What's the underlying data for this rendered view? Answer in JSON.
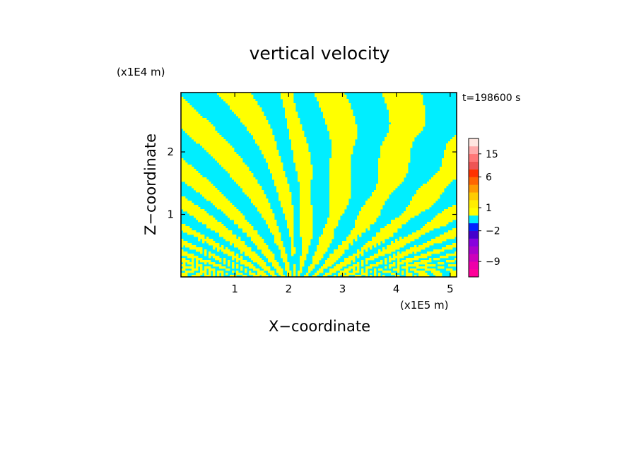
{
  "chart_data": {
    "type": "heatmap",
    "title": "vertical velocity",
    "xlabel": "X−coordinate",
    "ylabel": "Z−coordinate",
    "x_unit": "(x1E5 m)",
    "y_unit": "(x1E4 m)",
    "time_label": "t=198600 s",
    "xlim": [
      0,
      5.12
    ],
    "ylim": [
      0,
      2.95
    ],
    "x_ticks": [
      1,
      2,
      3,
      4,
      5
    ],
    "y_ticks": [
      1,
      2
    ],
    "x_tick_labels": [
      "1",
      "2",
      "3",
      "4",
      "5"
    ],
    "y_tick_labels": [
      "1",
      "2"
    ],
    "dominant_colors": {
      "positive": "#ffff00",
      "negative": "#00eeff"
    },
    "colorbar": {
      "tick_labels": [
        "15",
        "6",
        "1",
        "−2",
        "−9"
      ],
      "ticks": [
        15,
        6,
        1,
        -2,
        -9
      ],
      "levels": [
        -13,
        -11,
        -9,
        -7,
        -5,
        -3,
        -2,
        -1,
        0,
        1,
        2,
        3,
        4,
        6,
        8,
        11,
        15,
        19,
        23
      ],
      "colors": [
        "#ff0099",
        "#ee00aa",
        "#cc00bb",
        "#aa00cc",
        "#8800dd",
        "#4400cc",
        "#0022ff",
        "#00eeff",
        "#ffff00",
        "#ffee00",
        "#ffcc00",
        "#ff9900",
        "#ff6600",
        "#ff3300",
        "#ee5555",
        "#ff7777",
        "#ffaaaa",
        "#ffe6e0"
      ]
    }
  }
}
